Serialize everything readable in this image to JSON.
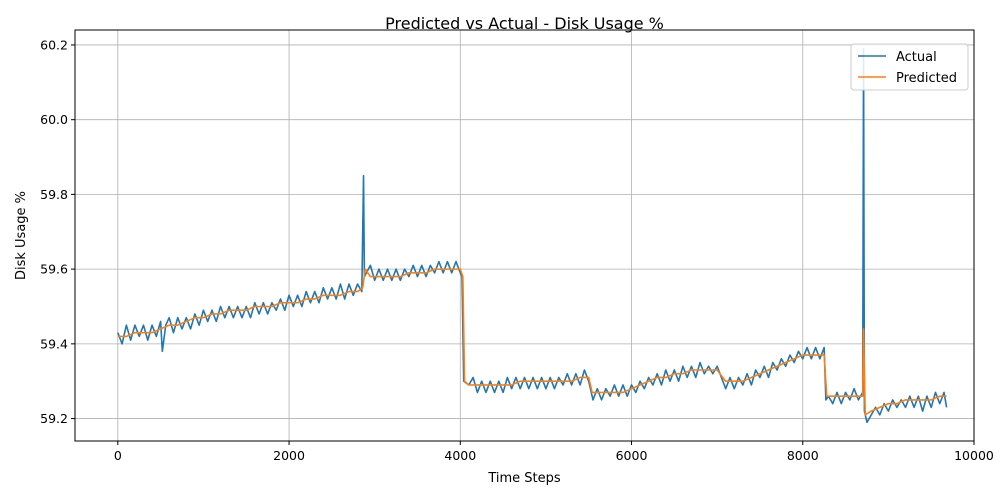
{
  "chart_data": {
    "type": "line",
    "title": "Predicted vs Actual - Disk Usage %",
    "xlabel": "Time Steps",
    "ylabel": "Disk Usage %",
    "xlim": [
      -500,
      10000
    ],
    "ylim": [
      59.14,
      60.24
    ],
    "xticks": [
      0,
      2000,
      4000,
      6000,
      8000,
      10000
    ],
    "xtick_labels": [
      "0",
      "2000",
      "4000",
      "6000",
      "8000",
      "10000"
    ],
    "yticks": [
      59.2,
      59.4,
      59.6,
      59.8,
      60.0,
      60.2
    ],
    "ytick_labels": [
      "59.2",
      "59.4",
      "59.6",
      "59.8",
      "60.0",
      "60.2"
    ],
    "grid": true,
    "legend_position": "top-right",
    "series": [
      {
        "name": "Actual",
        "color": "#1f77b4",
        "points": [
          [
            0,
            59.43
          ],
          [
            50,
            59.4
          ],
          [
            100,
            59.45
          ],
          [
            150,
            59.41
          ],
          [
            200,
            59.45
          ],
          [
            250,
            59.42
          ],
          [
            300,
            59.45
          ],
          [
            350,
            59.41
          ],
          [
            400,
            59.45
          ],
          [
            450,
            59.42
          ],
          [
            500,
            59.46
          ],
          [
            520,
            59.38
          ],
          [
            560,
            59.45
          ],
          [
            600,
            59.47
          ],
          [
            650,
            59.43
          ],
          [
            700,
            59.47
          ],
          [
            750,
            59.44
          ],
          [
            800,
            59.47
          ],
          [
            850,
            59.44
          ],
          [
            900,
            59.48
          ],
          [
            950,
            59.45
          ],
          [
            1000,
            59.49
          ],
          [
            1050,
            59.46
          ],
          [
            1100,
            59.49
          ],
          [
            1150,
            59.46
          ],
          [
            1200,
            59.5
          ],
          [
            1250,
            59.47
          ],
          [
            1300,
            59.5
          ],
          [
            1350,
            59.47
          ],
          [
            1400,
            59.5
          ],
          [
            1450,
            59.47
          ],
          [
            1500,
            59.5
          ],
          [
            1550,
            59.47
          ],
          [
            1600,
            59.51
          ],
          [
            1650,
            59.48
          ],
          [
            1700,
            59.51
          ],
          [
            1750,
            59.48
          ],
          [
            1800,
            59.51
          ],
          [
            1850,
            59.49
          ],
          [
            1900,
            59.52
          ],
          [
            1950,
            59.49
          ],
          [
            2000,
            59.53
          ],
          [
            2050,
            59.5
          ],
          [
            2100,
            59.53
          ],
          [
            2150,
            59.5
          ],
          [
            2200,
            59.54
          ],
          [
            2250,
            59.51
          ],
          [
            2300,
            59.54
          ],
          [
            2350,
            59.51
          ],
          [
            2400,
            59.55
          ],
          [
            2450,
            59.52
          ],
          [
            2500,
            59.55
          ],
          [
            2550,
            59.52
          ],
          [
            2600,
            59.56
          ],
          [
            2650,
            59.52
          ],
          [
            2700,
            59.56
          ],
          [
            2750,
            59.53
          ],
          [
            2800,
            59.56
          ],
          [
            2850,
            59.54
          ],
          [
            2870,
            59.85
          ],
          [
            2880,
            59.58
          ],
          [
            2950,
            59.61
          ],
          [
            3000,
            59.57
          ],
          [
            3050,
            59.6
          ],
          [
            3100,
            59.57
          ],
          [
            3150,
            59.6
          ],
          [
            3200,
            59.57
          ],
          [
            3250,
            59.6
          ],
          [
            3300,
            59.57
          ],
          [
            3350,
            59.6
          ],
          [
            3400,
            59.58
          ],
          [
            3450,
            59.61
          ],
          [
            3500,
            59.58
          ],
          [
            3550,
            59.61
          ],
          [
            3600,
            59.58
          ],
          [
            3650,
            59.61
          ],
          [
            3700,
            59.59
          ],
          [
            3750,
            59.62
          ],
          [
            3800,
            59.59
          ],
          [
            3850,
            59.62
          ],
          [
            3900,
            59.59
          ],
          [
            3950,
            59.62
          ],
          [
            4000,
            59.59
          ],
          [
            4020,
            59.58
          ],
          [
            4040,
            59.3
          ],
          [
            4100,
            59.29
          ],
          [
            4150,
            59.31
          ],
          [
            4200,
            59.27
          ],
          [
            4250,
            59.3
          ],
          [
            4300,
            59.27
          ],
          [
            4350,
            59.3
          ],
          [
            4400,
            59.27
          ],
          [
            4450,
            59.3
          ],
          [
            4500,
            59.27
          ],
          [
            4550,
            59.31
          ],
          [
            4600,
            59.28
          ],
          [
            4650,
            59.31
          ],
          [
            4700,
            59.28
          ],
          [
            4750,
            59.31
          ],
          [
            4800,
            59.28
          ],
          [
            4850,
            59.31
          ],
          [
            4900,
            59.28
          ],
          [
            4950,
            59.31
          ],
          [
            5000,
            59.28
          ],
          [
            5050,
            59.31
          ],
          [
            5100,
            59.28
          ],
          [
            5150,
            59.31
          ],
          [
            5200,
            59.29
          ],
          [
            5250,
            59.32
          ],
          [
            5300,
            59.29
          ],
          [
            5350,
            59.32
          ],
          [
            5400,
            59.29
          ],
          [
            5450,
            59.33
          ],
          [
            5500,
            59.3
          ],
          [
            5550,
            59.25
          ],
          [
            5600,
            59.28
          ],
          [
            5650,
            59.25
          ],
          [
            5700,
            59.28
          ],
          [
            5750,
            59.26
          ],
          [
            5800,
            59.29
          ],
          [
            5850,
            59.26
          ],
          [
            5900,
            59.29
          ],
          [
            5950,
            59.26
          ],
          [
            6000,
            59.29
          ],
          [
            6050,
            59.27
          ],
          [
            6100,
            59.3
          ],
          [
            6150,
            59.28
          ],
          [
            6200,
            59.31
          ],
          [
            6250,
            59.29
          ],
          [
            6300,
            59.32
          ],
          [
            6350,
            59.29
          ],
          [
            6400,
            59.33
          ],
          [
            6450,
            59.3
          ],
          [
            6500,
            59.33
          ],
          [
            6550,
            59.3
          ],
          [
            6600,
            59.34
          ],
          [
            6650,
            59.31
          ],
          [
            6700,
            59.34
          ],
          [
            6750,
            59.31
          ],
          [
            6800,
            59.35
          ],
          [
            6850,
            59.32
          ],
          [
            6900,
            59.34
          ],
          [
            6950,
            59.32
          ],
          [
            7000,
            59.34
          ],
          [
            7050,
            59.31
          ],
          [
            7100,
            59.28
          ],
          [
            7150,
            59.31
          ],
          [
            7200,
            59.28
          ],
          [
            7250,
            59.31
          ],
          [
            7300,
            59.29
          ],
          [
            7350,
            59.32
          ],
          [
            7400,
            59.29
          ],
          [
            7450,
            59.33
          ],
          [
            7500,
            59.31
          ],
          [
            7550,
            59.34
          ],
          [
            7600,
            59.31
          ],
          [
            7650,
            59.35
          ],
          [
            7700,
            59.33
          ],
          [
            7750,
            59.36
          ],
          [
            7800,
            59.34
          ],
          [
            7850,
            59.37
          ],
          [
            7900,
            59.35
          ],
          [
            7950,
            59.38
          ],
          [
            8000,
            59.36
          ],
          [
            8050,
            59.39
          ],
          [
            8100,
            59.36
          ],
          [
            8150,
            59.39
          ],
          [
            8200,
            59.36
          ],
          [
            8250,
            59.39
          ],
          [
            8270,
            59.25
          ],
          [
            8300,
            59.26
          ],
          [
            8350,
            59.24
          ],
          [
            8400,
            59.27
          ],
          [
            8450,
            59.24
          ],
          [
            8500,
            59.27
          ],
          [
            8550,
            59.25
          ],
          [
            8600,
            59.28
          ],
          [
            8650,
            59.25
          ],
          [
            8700,
            59.27
          ],
          [
            8710,
            60.19
          ],
          [
            8720,
            59.22
          ],
          [
            8750,
            59.19
          ],
          [
            8800,
            59.21
          ],
          [
            8850,
            59.23
          ],
          [
            8900,
            59.21
          ],
          [
            8950,
            59.24
          ],
          [
            9000,
            59.22
          ],
          [
            9050,
            59.25
          ],
          [
            9100,
            59.23
          ],
          [
            9150,
            59.25
          ],
          [
            9200,
            59.23
          ],
          [
            9250,
            59.26
          ],
          [
            9300,
            59.23
          ],
          [
            9350,
            59.26
          ],
          [
            9400,
            59.22
          ],
          [
            9450,
            59.26
          ],
          [
            9500,
            59.23
          ],
          [
            9550,
            59.27
          ],
          [
            9600,
            59.24
          ],
          [
            9650,
            59.27
          ],
          [
            9680,
            59.23
          ]
        ]
      },
      {
        "name": "Predicted",
        "color": "#ff7f0e",
        "points": [
          [
            0,
            59.42
          ],
          [
            100,
            59.42
          ],
          [
            200,
            59.43
          ],
          [
            300,
            59.43
          ],
          [
            400,
            59.43
          ],
          [
            500,
            59.44
          ],
          [
            600,
            59.45
          ],
          [
            700,
            59.45
          ],
          [
            800,
            59.46
          ],
          [
            900,
            59.47
          ],
          [
            1000,
            59.47
          ],
          [
            1100,
            59.48
          ],
          [
            1200,
            59.48
          ],
          [
            1300,
            59.49
          ],
          [
            1400,
            59.49
          ],
          [
            1500,
            59.49
          ],
          [
            1600,
            59.5
          ],
          [
            1700,
            59.5
          ],
          [
            1800,
            59.5
          ],
          [
            1900,
            59.51
          ],
          [
            2000,
            59.51
          ],
          [
            2100,
            59.51
          ],
          [
            2200,
            59.52
          ],
          [
            2300,
            59.52
          ],
          [
            2400,
            59.53
          ],
          [
            2500,
            59.53
          ],
          [
            2600,
            59.53
          ],
          [
            2700,
            59.54
          ],
          [
            2800,
            59.54
          ],
          [
            2860,
            59.55
          ],
          [
            2890,
            59.6
          ],
          [
            2950,
            59.58
          ],
          [
            3000,
            59.58
          ],
          [
            3100,
            59.58
          ],
          [
            3200,
            59.58
          ],
          [
            3300,
            59.58
          ],
          [
            3400,
            59.59
          ],
          [
            3500,
            59.59
          ],
          [
            3600,
            59.59
          ],
          [
            3700,
            59.6
          ],
          [
            3800,
            59.6
          ],
          [
            3900,
            59.6
          ],
          [
            4000,
            59.6
          ],
          [
            4030,
            59.58
          ],
          [
            4050,
            59.3
          ],
          [
            4100,
            59.29
          ],
          [
            4200,
            59.29
          ],
          [
            4300,
            59.29
          ],
          [
            4400,
            59.29
          ],
          [
            4500,
            59.29
          ],
          [
            4600,
            59.29
          ],
          [
            4700,
            59.3
          ],
          [
            4800,
            59.3
          ],
          [
            4900,
            59.3
          ],
          [
            5000,
            59.3
          ],
          [
            5100,
            59.3
          ],
          [
            5200,
            59.3
          ],
          [
            5300,
            59.3
          ],
          [
            5400,
            59.31
          ],
          [
            5500,
            59.31
          ],
          [
            5540,
            59.27
          ],
          [
            5600,
            59.27
          ],
          [
            5700,
            59.27
          ],
          [
            5800,
            59.27
          ],
          [
            5900,
            59.27
          ],
          [
            6000,
            59.28
          ],
          [
            6100,
            59.29
          ],
          [
            6200,
            59.3
          ],
          [
            6300,
            59.31
          ],
          [
            6400,
            59.31
          ],
          [
            6500,
            59.32
          ],
          [
            6600,
            59.32
          ],
          [
            6700,
            59.33
          ],
          [
            6800,
            59.33
          ],
          [
            6900,
            59.33
          ],
          [
            7000,
            59.33
          ],
          [
            7100,
            59.3
          ],
          [
            7200,
            59.3
          ],
          [
            7300,
            59.3
          ],
          [
            7400,
            59.31
          ],
          [
            7500,
            59.32
          ],
          [
            7600,
            59.33
          ],
          [
            7700,
            59.34
          ],
          [
            7800,
            59.35
          ],
          [
            7900,
            59.36
          ],
          [
            8000,
            59.37
          ],
          [
            8100,
            59.37
          ],
          [
            8200,
            59.37
          ],
          [
            8250,
            59.37
          ],
          [
            8280,
            59.26
          ],
          [
            8350,
            59.26
          ],
          [
            8400,
            59.26
          ],
          [
            8500,
            59.26
          ],
          [
            8600,
            59.26
          ],
          [
            8700,
            59.26
          ],
          [
            8710,
            59.44
          ],
          [
            8730,
            59.21
          ],
          [
            8800,
            59.22
          ],
          [
            8900,
            59.23
          ],
          [
            9000,
            59.24
          ],
          [
            9100,
            59.24
          ],
          [
            9200,
            59.25
          ],
          [
            9300,
            59.25
          ],
          [
            9400,
            59.25
          ],
          [
            9500,
            59.25
          ],
          [
            9600,
            59.26
          ],
          [
            9680,
            59.26
          ]
        ]
      }
    ]
  }
}
